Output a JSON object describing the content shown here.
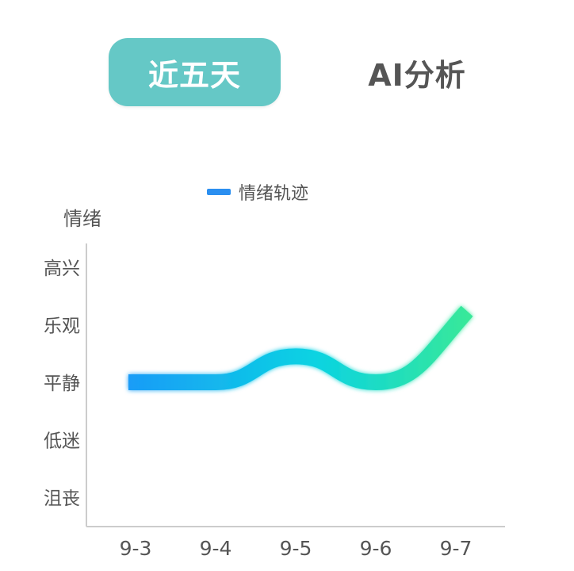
{
  "tabs": [
    {
      "label": "近五天",
      "active": true
    },
    {
      "label": "AI分析",
      "active": false
    }
  ],
  "colors": {
    "tab_active_bg": "#65c8c6",
    "tab_active_text": "#ffffff",
    "tab_inactive_text": "#555555",
    "legend_swatch": "#2b8ff0",
    "line_start": "#1a9cf7",
    "line_mid": "#0ad3e2",
    "line_end": "#37e89a",
    "axis": "#cccccc",
    "label_text": "#555555"
  },
  "chart_data": {
    "type": "line",
    "legend": [
      "情绪轨迹"
    ],
    "legend_position": "top-center",
    "ylabel": "情绪",
    "xlabel": "",
    "categories": [
      "9-3",
      "9-4",
      "9-5",
      "9-6",
      "9-7"
    ],
    "y_levels": [
      "沮丧",
      "低迷",
      "平静",
      "乐观",
      "高兴"
    ],
    "series": [
      {
        "name": "情绪轨迹",
        "values": [
          2,
          2,
          2.45,
          2,
          3.1
        ],
        "smooth": true
      }
    ],
    "ylim": [
      0,
      4
    ],
    "grid": false
  }
}
